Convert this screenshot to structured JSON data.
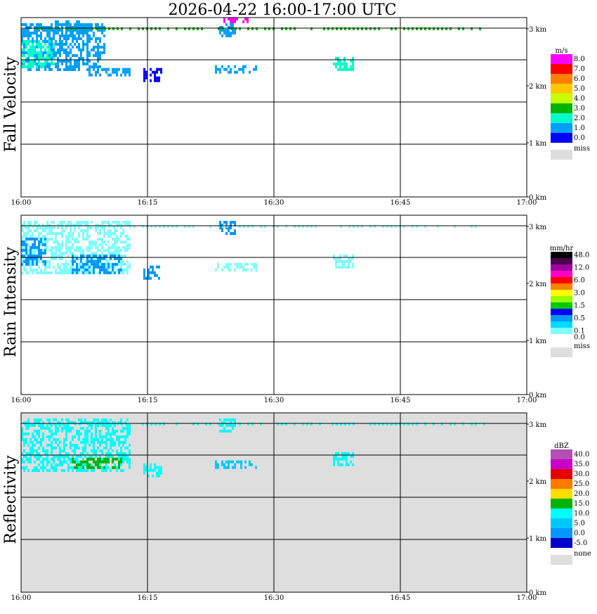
{
  "title": "2026-04-22  16:00-17:00 UTC",
  "x_ticks": [
    "16:00",
    "16:15",
    "16:30",
    "16:45",
    "17:00"
  ],
  "y_ticks": [
    "0 km",
    "1 km",
    "2 km",
    "3 km"
  ],
  "panels": [
    {
      "label": "Fall Velocity",
      "unit": "m/s",
      "missing_label": "miss",
      "background": "#ffffff",
      "scale": [
        {
          "label": "8.0",
          "color": "#ff00ff"
        },
        {
          "label": "7.0",
          "color": "#ff0000"
        },
        {
          "label": "6.0",
          "color": "#ff8000"
        },
        {
          "label": "5.0",
          "color": "#ffc800"
        },
        {
          "label": "4.0",
          "color": "#c8ff00"
        },
        {
          "label": "3.0",
          "color": "#00b400"
        },
        {
          "label": "2.0",
          "color": "#00ffc8"
        },
        {
          "label": "1.0",
          "color": "#00a0ff"
        },
        {
          "label": "0.0",
          "color": "#0000ff"
        }
      ]
    },
    {
      "label": "Rain Intensity",
      "unit": "mm/hr",
      "missing_label": "miss",
      "background": "#ffffff",
      "scale": [
        {
          "label": "48.0",
          "color": "#000000"
        },
        {
          "label": "",
          "color": "#500050"
        },
        {
          "label": "12.0",
          "color": "#a000a0"
        },
        {
          "label": "",
          "color": "#ff00c8"
        },
        {
          "label": "6.0",
          "color": "#ff0000"
        },
        {
          "label": "",
          "color": "#ff8000"
        },
        {
          "label": "3.0",
          "color": "#ffff00"
        },
        {
          "label": "",
          "color": "#96ff00"
        },
        {
          "label": "1.5",
          "color": "#00c800"
        },
        {
          "label": "",
          "color": "#0000ff"
        },
        {
          "label": "0.5",
          "color": "#0096ff"
        },
        {
          "label": "",
          "color": "#00dcff"
        },
        {
          "label": "0.1",
          "color": "#80ffff"
        },
        {
          "label": "0.0",
          "color": "#ffffff"
        }
      ]
    },
    {
      "label": "Reflectivity",
      "unit": "dBZ",
      "missing_label": "none",
      "background": "#dedede",
      "scale": [
        {
          "label": "40.0",
          "color": "#b450b4"
        },
        {
          "label": "35.0",
          "color": "#c800c8"
        },
        {
          "label": "30.0",
          "color": "#e60000"
        },
        {
          "label": "25.0",
          "color": "#ff7800"
        },
        {
          "label": "20.0",
          "color": "#ffdc00"
        },
        {
          "label": "15.0",
          "color": "#00b400"
        },
        {
          "label": "10.0",
          "color": "#00ffff"
        },
        {
          "label": "5.0",
          "color": "#00c8ff"
        },
        {
          "label": "0.0",
          "color": "#0096ff"
        },
        {
          "label": "-5.0",
          "color": "#0000c8"
        }
      ]
    }
  ],
  "chart_data": [
    {
      "type": "heatmap",
      "title": "Fall Velocity",
      "units": "m/s",
      "x_range": [
        "16:00",
        "17:00"
      ],
      "y_range_km": [
        0,
        3.2
      ],
      "grid": true,
      "blobs": [
        {
          "t_min": [
            0,
            10
          ],
          "h_km": [
            2.25,
            3.1
          ],
          "value": 1.0
        },
        {
          "t_min": [
            0,
            4
          ],
          "h_km": [
            2.3,
            2.8
          ],
          "value": 1.5
        },
        {
          "t_min": [
            4,
            8
          ],
          "h_km": [
            2.9,
            3.15
          ],
          "value": 0.5
        },
        {
          "t_min": [
            8,
            13
          ],
          "h_km": [
            2.15,
            2.3
          ],
          "value": 0.5
        },
        {
          "t_min": [
            14.5,
            16.5
          ],
          "h_km": [
            2.05,
            2.3
          ],
          "value": 0.3
        },
        {
          "t_min": [
            23,
            28
          ],
          "h_km": [
            2.2,
            2.35
          ],
          "value": 0.5
        },
        {
          "t_min": [
            23.5,
            25.5
          ],
          "h_km": [
            2.85,
            3.1
          ],
          "value": 0.7
        },
        {
          "t_min": [
            24,
            27
          ],
          "h_km": [
            3.1,
            3.2
          ],
          "value": 8.0
        },
        {
          "t_min": [
            37,
            39.5
          ],
          "h_km": [
            2.25,
            2.5
          ],
          "value": 1.5
        }
      ],
      "near_top_band_km": 3.0,
      "near_top_band_value": 3.0
    },
    {
      "type": "heatmap",
      "title": "Rain Intensity",
      "units": "mm/hr",
      "x_range": [
        "16:00",
        "17:00"
      ],
      "y_range_km": [
        0,
        3.2
      ],
      "grid": true,
      "blobs": [
        {
          "t_min": [
            0,
            13
          ],
          "h_km": [
            2.15,
            3.1
          ],
          "value": 0.1
        },
        {
          "t_min": [
            0,
            3
          ],
          "h_km": [
            2.3,
            2.8
          ],
          "value": 0.5
        },
        {
          "t_min": [
            6,
            12
          ],
          "h_km": [
            2.15,
            2.5
          ],
          "value": 0.5
        },
        {
          "t_min": [
            14.5,
            16.5
          ],
          "h_km": [
            2.05,
            2.3
          ],
          "value": 0.5
        },
        {
          "t_min": [
            23,
            28
          ],
          "h_km": [
            2.2,
            2.35
          ],
          "value": 0.1
        },
        {
          "t_min": [
            23.5,
            25.5
          ],
          "h_km": [
            2.85,
            3.1
          ],
          "value": 0.5
        },
        {
          "t_min": [
            37,
            39.5
          ],
          "h_km": [
            2.25,
            2.5
          ],
          "value": 0.1
        }
      ],
      "near_top_band_km": 3.0,
      "near_top_band_value": 0.1
    },
    {
      "type": "heatmap",
      "title": "Reflectivity",
      "units": "dBZ",
      "x_range": [
        "16:00",
        "17:00"
      ],
      "y_range_km": [
        0,
        3.2
      ],
      "grid": true,
      "blobs": [
        {
          "t_min": [
            0,
            13
          ],
          "h_km": [
            2.15,
            3.1
          ],
          "value": 10.0
        },
        {
          "t_min": [
            6,
            12
          ],
          "h_km": [
            2.2,
            2.4
          ],
          "value": 15.0
        },
        {
          "t_min": [
            14.5,
            16.5
          ],
          "h_km": [
            2.05,
            2.3
          ],
          "value": 10.0
        },
        {
          "t_min": [
            23,
            28
          ],
          "h_km": [
            2.2,
            2.35
          ],
          "value": 5.0
        },
        {
          "t_min": [
            23.5,
            25.5
          ],
          "h_km": [
            2.85,
            3.1
          ],
          "value": 10.0
        },
        {
          "t_min": [
            37,
            39.5
          ],
          "h_km": [
            2.25,
            2.5
          ],
          "value": 10.0
        }
      ],
      "near_top_band_km": 3.0,
      "near_top_band_value": 10.0
    }
  ]
}
